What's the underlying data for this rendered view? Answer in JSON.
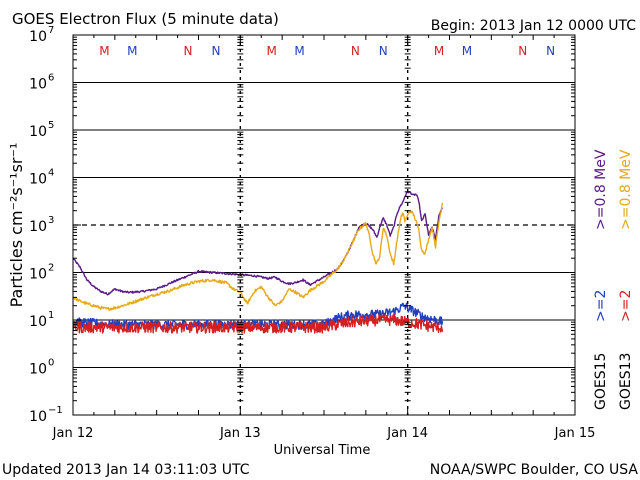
{
  "chart_data": {
    "type": "line",
    "title": "GOES Electron Flux (5 minute data)",
    "begin_label": "Begin: 2013 Jan 12 0000 UTC",
    "xlabel": "Universal Time",
    "ylabel": "Particles cm⁻²s⁻¹sr⁻¹",
    "updated": "Updated 2013 Jan 14 03:11:03 UTC",
    "credit": "NOAA/SWPC Boulder, CO USA",
    "x_unit": "hours since 2013 Jan 12 00:00 UTC",
    "xlim": [
      0,
      72
    ],
    "yscale": "log",
    "ylim_exponent": [
      -1,
      7
    ],
    "y_tick_labels": [
      {
        "exp": -1,
        "base": "10",
        "sup": "−1"
      },
      {
        "exp": 0,
        "base": "10",
        "sup": "0"
      },
      {
        "exp": 1,
        "base": "10",
        "sup": "1"
      },
      {
        "exp": 2,
        "base": "10",
        "sup": "2"
      },
      {
        "exp": 3,
        "base": "10",
        "sup": "3"
      },
      {
        "exp": 4,
        "base": "10",
        "sup": "4"
      },
      {
        "exp": 5,
        "base": "10",
        "sup": "5"
      },
      {
        "exp": 6,
        "base": "10",
        "sup": "6"
      },
      {
        "exp": 7,
        "base": "10",
        "sup": "7"
      }
    ],
    "x_tick_labels": [
      {
        "hour": 0,
        "label": "Jan 12"
      },
      {
        "hour": 24,
        "label": "Jan 13"
      },
      {
        "hour": 48,
        "label": "Jan 14"
      },
      {
        "hour": 72,
        "label": "Jan 15"
      }
    ],
    "threshold_line": {
      "value": 1000,
      "style": "dashed"
    },
    "day_boundaries": [
      24,
      48
    ],
    "markers": [
      {
        "hour": 4.5,
        "letter": "M",
        "color": "#d42020"
      },
      {
        "hour": 8.5,
        "letter": "M",
        "color": "#2040c0"
      },
      {
        "hour": 16.5,
        "letter": "N",
        "color": "#d42020"
      },
      {
        "hour": 20.5,
        "letter": "N",
        "color": "#2040c0"
      },
      {
        "hour": 28.5,
        "letter": "M",
        "color": "#d42020"
      },
      {
        "hour": 32.5,
        "letter": "M",
        "color": "#2040c0"
      },
      {
        "hour": 40.5,
        "letter": "N",
        "color": "#d42020"
      },
      {
        "hour": 44.5,
        "letter": "N",
        "color": "#2040c0"
      },
      {
        "hour": 52.5,
        "letter": "M",
        "color": "#d42020"
      },
      {
        "hour": 56.5,
        "letter": "M",
        "color": "#2040c0"
      },
      {
        "hour": 64.5,
        "letter": "N",
        "color": "#d42020"
      },
      {
        "hour": 68.5,
        "letter": "N",
        "color": "#2040c0"
      }
    ],
    "legend": [
      {
        "text": "GOES15",
        "color": "#000000"
      },
      {
        "text": ">=2",
        "color": "#2040c0"
      },
      {
        "text": ">=0.8 MeV",
        "color": "#5a1a8a"
      },
      {
        "text": "GOES13",
        "color": "#000000"
      },
      {
        "text": ">=2",
        "color": "#d42020"
      },
      {
        "text": ">=0.8 MeV",
        "color": "#e8a818"
      }
    ],
    "series": [
      {
        "name": "GOES15 >=0.8 MeV",
        "color": "#5a1a8a",
        "noise": 0.02,
        "x": [
          0,
          1,
          2,
          3,
          4,
          5,
          6,
          7,
          8,
          10,
          12,
          14,
          16,
          18,
          20,
          22,
          24,
          26,
          28,
          29,
          30,
          31,
          32,
          33,
          34,
          36,
          38,
          39,
          40,
          41,
          42,
          43,
          43.6,
          44,
          44.5,
          45,
          45.5,
          46,
          46.5,
          47,
          47.3,
          47.6,
          48,
          48.4,
          48.8,
          49.2,
          49.6,
          50,
          50.5,
          51,
          51.5,
          52,
          52.5,
          53
        ],
        "y": [
          200,
          130,
          70,
          50,
          40,
          35,
          45,
          40,
          38,
          40,
          45,
          60,
          80,
          105,
          100,
          95,
          90,
          85,
          75,
          80,
          65,
          58,
          62,
          70,
          55,
          80,
          120,
          200,
          400,
          900,
          1100,
          800,
          550,
          900,
          1400,
          1000,
          600,
          900,
          1800,
          2600,
          3000,
          4000,
          5000,
          4800,
          4200,
          4500,
          3200,
          1200,
          1700,
          600,
          900,
          500,
          1600,
          2400
        ]
      },
      {
        "name": "GOES13 >=0.8 MeV",
        "color": "#e8a818",
        "noise": 0.03,
        "x": [
          0,
          1,
          2,
          3,
          4,
          5,
          6,
          8,
          10,
          12,
          14,
          16,
          18,
          20,
          22,
          23,
          24,
          25,
          26,
          27,
          28,
          29,
          30,
          31,
          32,
          33,
          34,
          36,
          38,
          39,
          40,
          41,
          42,
          42.5,
          43,
          43.5,
          44,
          44.5,
          45,
          45.5,
          46,
          46.5,
          47,
          47.3,
          47.6,
          48,
          48.4,
          48.8,
          49.2,
          49.6,
          50,
          50.5,
          51,
          51.5,
          52,
          52.5,
          53
        ],
        "y": [
          30,
          25,
          22,
          20,
          18,
          17,
          18,
          22,
          28,
          35,
          42,
          55,
          65,
          70,
          60,
          45,
          38,
          22,
          40,
          50,
          30,
          20,
          25,
          45,
          38,
          30,
          42,
          65,
          120,
          200,
          400,
          800,
          1100,
          600,
          250,
          150,
          220,
          900,
          600,
          250,
          150,
          500,
          1400,
          1800,
          1200,
          1600,
          2000,
          1700,
          1200,
          800,
          300,
          250,
          500,
          900,
          350,
          1200,
          3000
        ]
      },
      {
        "name": "GOES15 >=2 MeV",
        "color": "#2040c0",
        "noise": 0.1,
        "x": [
          0,
          6,
          12,
          18,
          24,
          30,
          36,
          38,
          40,
          44,
          46,
          47,
          47.5,
          48,
          49,
          50,
          52,
          53
        ],
        "y": [
          9,
          8,
          8,
          8,
          8,
          8,
          8,
          11,
          13,
          13,
          15,
          18,
          20,
          18,
          15,
          12,
          10,
          9
        ]
      },
      {
        "name": "GOES13 >=2 MeV",
        "color": "#d42020",
        "noise": 0.12,
        "x": [
          0,
          6,
          12,
          18,
          24,
          30,
          36,
          38,
          40,
          44,
          46,
          48,
          50,
          52,
          53
        ],
        "y": [
          7,
          7,
          7,
          7,
          7,
          7,
          7,
          8,
          9,
          10,
          10,
          9,
          8,
          7,
          7
        ]
      }
    ]
  }
}
